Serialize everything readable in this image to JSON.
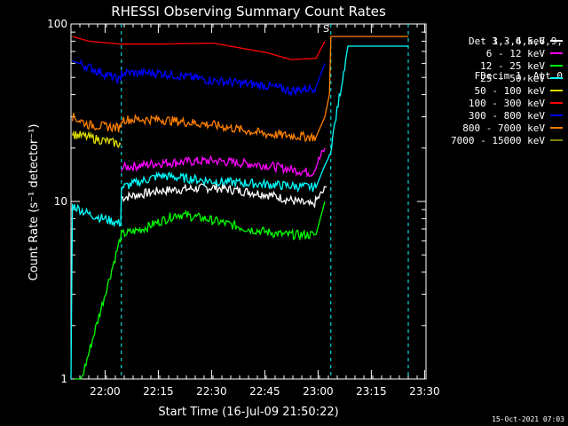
{
  "chart_data": {
    "type": "line",
    "title": "RHESSI Observing Summary Count Rates",
    "xlabel": "Start Time (16-Jul-09 21:50:22)",
    "ylabel": "Count Rate (s⁻¹ detector⁻¹)",
    "yscale": "log",
    "ylim": [
      1,
      100
    ],
    "y_ticks": [
      "1",
      "10",
      "100"
    ],
    "xlim_minutes_from_start": [
      0,
      100
    ],
    "x_ticks": [
      {
        "label": "22:00",
        "min": 9.6
      },
      {
        "label": "22:15",
        "min": 24.6
      },
      {
        "label": "22:30",
        "min": 39.6
      },
      {
        "label": "22:45",
        "min": 54.6
      },
      {
        "label": "23:00",
        "min": 69.6
      },
      {
        "label": "23:15",
        "min": 84.6
      },
      {
        "label": "23:30",
        "min": 99.6
      }
    ],
    "legend_header": [
      "Det 1,3,4,5,6,9,",
      "FDecim 1, Att 0"
    ],
    "series": [
      {
        "name": "3 - 6 keV",
        "color": "#ffffff",
        "points": [
          [
            14.2,
            10.5
          ],
          [
            25,
            11.5
          ],
          [
            40,
            12.0
          ],
          [
            55,
            11.0
          ],
          [
            68,
            9.5
          ],
          [
            72,
            12
          ]
        ]
      },
      {
        "name": "6 - 12 keV",
        "color": "#ff00ff",
        "points": [
          [
            14.2,
            15.5
          ],
          [
            25,
            16.5
          ],
          [
            40,
            17.0
          ],
          [
            55,
            16.0
          ],
          [
            68,
            14.5
          ],
          [
            71.5,
            20
          ]
        ]
      },
      {
        "name": "12 - 25 keV",
        "color": "#00ff00",
        "points": [
          [
            1,
            1
          ],
          [
            3,
            1
          ],
          [
            14.2,
            6.5
          ],
          [
            20,
            7.0
          ],
          [
            30,
            8.5
          ],
          [
            38,
            8.0
          ],
          [
            50,
            7.0
          ],
          [
            60,
            6.5
          ],
          [
            69,
            6.5
          ],
          [
            71.5,
            10
          ]
        ]
      },
      {
        "name": "25 - 50 keV",
        "color": "#00ffff",
        "points": [
          [
            0,
            1
          ],
          [
            0.4,
            9.5
          ],
          [
            5,
            8.5
          ],
          [
            14,
            7.5
          ],
          [
            14.2,
            12.0
          ],
          [
            25,
            14.0
          ],
          [
            40,
            13.0
          ],
          [
            55,
            12.5
          ],
          [
            69,
            12.0
          ],
          [
            71.5,
            16
          ],
          [
            72.8,
            18
          ],
          [
            78,
            75
          ],
          [
            95,
            75
          ]
        ]
      },
      {
        "name": "50 - 100 keV",
        "color": "#dddd00",
        "points": [
          [
            0.4,
            24
          ],
          [
            5,
            23
          ],
          [
            14,
            21
          ]
        ]
      },
      {
        "name": "100 - 300 keV",
        "color": "#ff0000",
        "points": [
          [
            0.4,
            85
          ],
          [
            5,
            80
          ],
          [
            14,
            77
          ],
          [
            25,
            77
          ],
          [
            40,
            78
          ],
          [
            55,
            69
          ],
          [
            62,
            63
          ],
          [
            69,
            64
          ],
          [
            71.5,
            80
          ]
        ]
      },
      {
        "name": "300 - 800 keV",
        "color": "#0000ff",
        "points": [
          [
            0.4,
            62
          ],
          [
            5,
            57
          ],
          [
            14,
            48
          ],
          [
            14.2,
            53
          ],
          [
            25,
            53
          ],
          [
            40,
            48
          ],
          [
            55,
            45
          ],
          [
            62,
            42
          ],
          [
            69,
            44
          ],
          [
            71.5,
            60
          ]
        ]
      },
      {
        "name": "800 - 7000 keV",
        "color": "#ff8000",
        "points": [
          [
            0.4,
            30
          ],
          [
            5,
            27
          ],
          [
            14,
            26
          ],
          [
            14.2,
            29
          ],
          [
            25,
            29
          ],
          [
            40,
            27
          ],
          [
            55,
            24
          ],
          [
            69,
            23
          ],
          [
            71.5,
            30
          ],
          [
            72.8,
            40
          ],
          [
            73.2,
            85
          ],
          [
            95,
            85
          ]
        ]
      },
      {
        "name": "7000 - 15000 keV",
        "color": "#808000",
        "points": []
      }
    ],
    "markers": [
      {
        "text": "S",
        "x_min": 71.0,
        "y": 90,
        "color": "#ff4040"
      }
    ],
    "dashed_vlines_minutes": [
      14.2,
      73.2,
      95
    ]
  },
  "footer": "15-Oct-2021 07:03"
}
